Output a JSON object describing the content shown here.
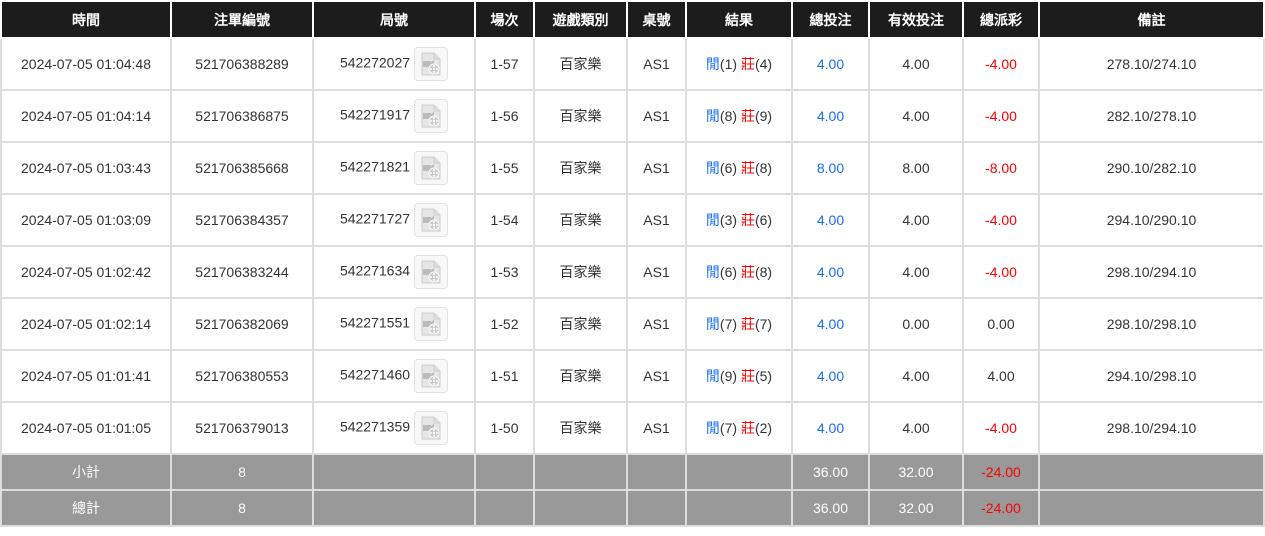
{
  "headers": [
    "時間",
    "注單編號",
    "局號",
    "場次",
    "遊戲類別",
    "桌號",
    "結果",
    "總投注",
    "有效投注",
    "總派彩",
    "備註"
  ],
  "colors": {
    "blue": "#1a6ff0",
    "red": "#ff0000",
    "header_bg": "#1c1c1c",
    "summary_bg": "#999999"
  },
  "rows": [
    {
      "time": "2024-07-05 01:04:48",
      "bet_id": "521706388289",
      "round": "542272027",
      "shoe": "1-57",
      "game": "百家樂",
      "table": "AS1",
      "player": "閒",
      "player_pts": "(1)",
      "banker": "莊",
      "banker_pts": "(4)",
      "total": "4.00",
      "valid": "4.00",
      "payout": "-4.00",
      "note": "278.10/274.10"
    },
    {
      "time": "2024-07-05 01:04:14",
      "bet_id": "521706386875",
      "round": "542271917",
      "shoe": "1-56",
      "game": "百家樂",
      "table": "AS1",
      "player": "閒",
      "player_pts": "(8)",
      "banker": "莊",
      "banker_pts": "(9)",
      "total": "4.00",
      "valid": "4.00",
      "payout": "-4.00",
      "note": "282.10/278.10"
    },
    {
      "time": "2024-07-05 01:03:43",
      "bet_id": "521706385668",
      "round": "542271821",
      "shoe": "1-55",
      "game": "百家樂",
      "table": "AS1",
      "player": "閒",
      "player_pts": "(6)",
      "banker": "莊",
      "banker_pts": "(8)",
      "total": "8.00",
      "valid": "8.00",
      "payout": "-8.00",
      "note": "290.10/282.10"
    },
    {
      "time": "2024-07-05 01:03:09",
      "bet_id": "521706384357",
      "round": "542271727",
      "shoe": "1-54",
      "game": "百家樂",
      "table": "AS1",
      "player": "閒",
      "player_pts": "(3)",
      "banker": "莊",
      "banker_pts": "(6)",
      "total": "4.00",
      "valid": "4.00",
      "payout": "-4.00",
      "note": "294.10/290.10"
    },
    {
      "time": "2024-07-05 01:02:42",
      "bet_id": "521706383244",
      "round": "542271634",
      "shoe": "1-53",
      "game": "百家樂",
      "table": "AS1",
      "player": "閒",
      "player_pts": "(6)",
      "banker": "莊",
      "banker_pts": "(8)",
      "total": "4.00",
      "valid": "4.00",
      "payout": "-4.00",
      "note": "298.10/294.10"
    },
    {
      "time": "2024-07-05 01:02:14",
      "bet_id": "521706382069",
      "round": "542271551",
      "shoe": "1-52",
      "game": "百家樂",
      "table": "AS1",
      "player": "閒",
      "player_pts": "(7)",
      "banker": "莊",
      "banker_pts": "(7)",
      "total": "4.00",
      "valid": "0.00",
      "payout": "0.00",
      "note": "298.10/298.10"
    },
    {
      "time": "2024-07-05 01:01:41",
      "bet_id": "521706380553",
      "round": "542271460",
      "shoe": "1-51",
      "game": "百家樂",
      "table": "AS1",
      "player": "閒",
      "player_pts": "(9)",
      "banker": "莊",
      "banker_pts": "(5)",
      "total": "4.00",
      "valid": "4.00",
      "payout": "4.00",
      "note": "294.10/298.10"
    },
    {
      "time": "2024-07-05 01:01:05",
      "bet_id": "521706379013",
      "round": "542271359",
      "shoe": "1-50",
      "game": "百家樂",
      "table": "AS1",
      "player": "閒",
      "player_pts": "(7)",
      "banker": "莊",
      "banker_pts": "(2)",
      "total": "4.00",
      "valid": "4.00",
      "payout": "-4.00",
      "note": "298.10/294.10"
    }
  ],
  "subtotal": {
    "label": "小計",
    "count": "8",
    "total": "36.00",
    "valid": "32.00",
    "payout": "-24.00"
  },
  "grand_total": {
    "label": "總計",
    "count": "8",
    "total": "36.00",
    "valid": "32.00",
    "payout": "-24.00"
  },
  "icons": {
    "replay": "video-file-icon"
  }
}
